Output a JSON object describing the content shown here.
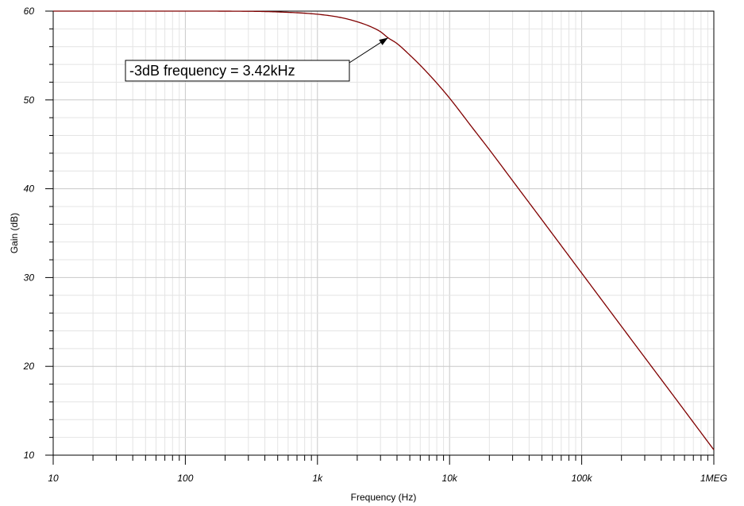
{
  "chart_data": {
    "type": "line",
    "title": "",
    "xlabel": "Frequency (Hz)",
    "ylabel": "Gain (dB)",
    "xscale": "log",
    "xlim": [
      10,
      1000000
    ],
    "ylim": [
      10,
      60
    ],
    "grid": true,
    "x_ticks": [
      {
        "value": 10,
        "label": "10"
      },
      {
        "value": 100,
        "label": "100"
      },
      {
        "value": 1000,
        "label": "1k"
      },
      {
        "value": 10000,
        "label": "10k"
      },
      {
        "value": 100000,
        "label": "100k"
      },
      {
        "value": 1000000,
        "label": "1MEG"
      }
    ],
    "y_ticks": [
      {
        "value": 10,
        "label": "10"
      },
      {
        "value": 20,
        "label": "20"
      },
      {
        "value": 30,
        "label": "30"
      },
      {
        "value": 40,
        "label": "40"
      },
      {
        "value": 50,
        "label": "50"
      },
      {
        "value": 60,
        "label": "60"
      }
    ],
    "series": [
      {
        "color": "#800000",
        "x": [
          10,
          100,
          300,
          500,
          1000,
          1500,
          2000,
          2500,
          3000,
          3420,
          4000,
          5000,
          6000,
          7000,
          8000,
          10000,
          15000,
          20000,
          30000,
          50000,
          100000,
          200000,
          300000,
          500000,
          1000000
        ],
        "y": [
          60,
          60,
          59.98,
          59.91,
          59.65,
          59.28,
          58.8,
          58.28,
          57.68,
          57.0,
          56.35,
          55.05,
          53.9,
          52.85,
          51.9,
          50.2,
          46.8,
          44.4,
          40.9,
          36.5,
          30.5,
          24.5,
          21.0,
          16.6,
          10.6
        ]
      }
    ],
    "annotations": [
      {
        "text": "-3dB frequency = 3.42kHz",
        "x": 3420,
        "y": 57.0
      }
    ]
  }
}
